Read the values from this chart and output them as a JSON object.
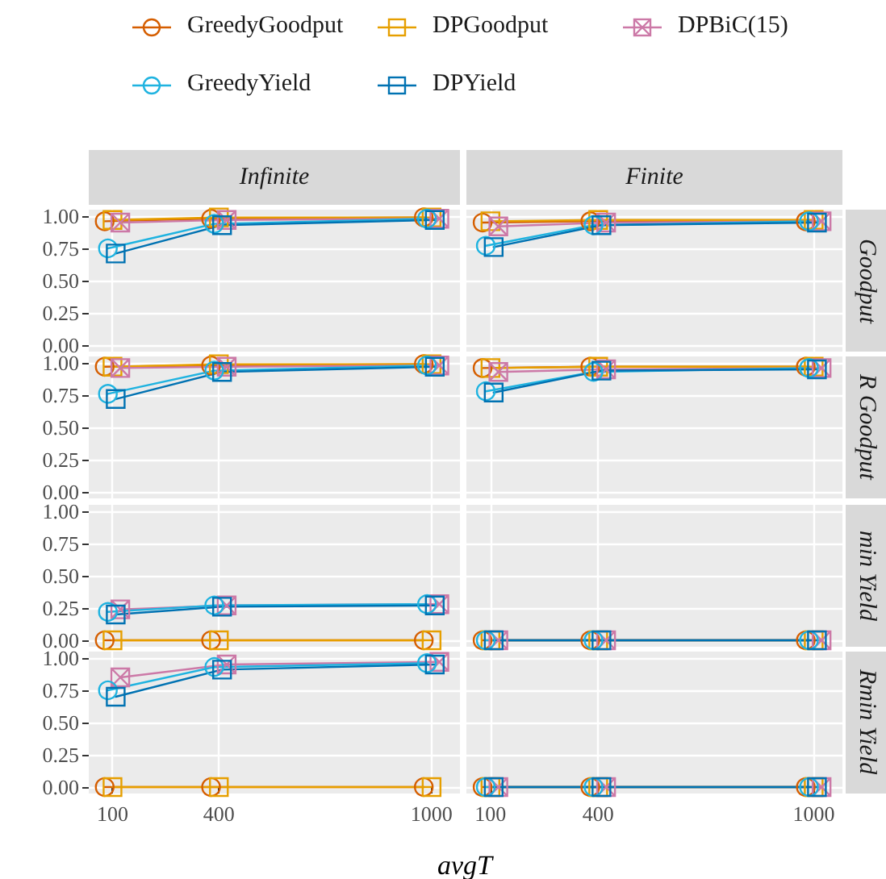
{
  "chart_data": [
    {
      "type": "line",
      "title": "Infinite",
      "xlim": [
        33,
        1080
      ],
      "xticks": [
        100,
        400,
        1000
      ],
      "ylim": [
        -0.05,
        1.05
      ],
      "yticks": [
        {
          "value": 0,
          "label": "0.00"
        },
        {
          "value": 0.25,
          "label": "0.25"
        },
        {
          "value": 0.5,
          "label": "0.50"
        },
        {
          "value": 0.75,
          "label": "0.75"
        },
        {
          "value": 1,
          "label": "1.00"
        }
      ],
      "grid": true,
      "legend": "top",
      "tick_labels": "y",
      "line_style": "solid",
      "series": [
        {
          "name": "GreedyGoodput",
          "color": "#d55e00",
          "marker": "circle",
          "x": [
            78,
            378,
            978
          ],
          "values": [
            0.96,
            0.98,
            0.99
          ]
        },
        {
          "name": "DPGoodput",
          "color": "#e69f00",
          "marker": "square",
          "x": [
            100,
            400,
            1000
          ],
          "values": [
            0.97,
            0.99,
            0.99
          ]
        },
        {
          "name": "DPBiC(15)",
          "color": "#cc79a7",
          "marker": "cross",
          "x": [
            122,
            422,
            1022
          ],
          "values": [
            0.95,
            0.97,
            0.98
          ]
        },
        {
          "name": "GreedyYield",
          "color": "#1fb3e0",
          "marker": "circle",
          "x": [
            87,
            387,
            987
          ],
          "values": [
            0.75,
            0.94,
            0.98
          ]
        },
        {
          "name": "DPYield",
          "color": "#0072b2",
          "marker": "square",
          "x": [
            109,
            409,
            1009
          ],
          "values": [
            0.71,
            0.93,
            0.97
          ]
        }
      ]
    },
    {
      "type": "line",
      "title": "Finite",
      "y2label": "Goodput",
      "xlim": [
        33,
        1080
      ],
      "xticks": [
        100,
        400,
        1000
      ],
      "ylim": [
        -0.05,
        1.05
      ],
      "yticks": [
        0,
        0.25,
        0.5,
        0.75,
        1
      ],
      "grid": true,
      "tick_labels": false,
      "line_style": "solid",
      "series": [
        {
          "color": "#d55e00",
          "marker": "circle",
          "x": [
            78,
            378,
            978
          ],
          "values": [
            0.95,
            0.96,
            0.96
          ]
        },
        {
          "color": "#e69f00",
          "marker": "square",
          "x": [
            100,
            400,
            1000
          ],
          "values": [
            0.96,
            0.97,
            0.97
          ]
        },
        {
          "color": "#cc79a7",
          "marker": "cross",
          "x": [
            122,
            422,
            1022
          ],
          "values": [
            0.92,
            0.95,
            0.96
          ]
        },
        {
          "color": "#1fb3e0",
          "marker": "circle",
          "x": [
            87,
            387,
            987
          ],
          "values": [
            0.77,
            0.93,
            0.96
          ]
        },
        {
          "color": "#0072b2",
          "marker": "square",
          "x": [
            109,
            409,
            1009
          ],
          "values": [
            0.76,
            0.93,
            0.95
          ]
        }
      ]
    },
    {
      "type": "line",
      "xlim": [
        33,
        1080
      ],
      "xticks": [
        100,
        400,
        1000
      ],
      "ylim": [
        -0.05,
        1.05
      ],
      "yticks": [
        {
          "value": 0,
          "label": "0.00"
        },
        {
          "value": 0.25,
          "label": "0.25"
        },
        {
          "value": 0.5,
          "label": "0.50"
        },
        {
          "value": 0.75,
          "label": "0.75"
        },
        {
          "value": 1,
          "label": "1.00"
        }
      ],
      "grid": true,
      "tick_labels": "y",
      "line_style": "solid",
      "series": [
        {
          "color": "#d55e00",
          "marker": "circle",
          "x": [
            78,
            378,
            978
          ],
          "values": [
            0.97,
            0.98,
            0.99
          ]
        },
        {
          "color": "#e69f00",
          "marker": "square",
          "x": [
            100,
            400,
            1000
          ],
          "values": [
            0.97,
            0.99,
            0.99
          ]
        },
        {
          "color": "#cc79a7",
          "marker": "cross",
          "x": [
            122,
            422,
            1022
          ],
          "values": [
            0.96,
            0.97,
            0.98
          ]
        },
        {
          "color": "#1fb3e0",
          "marker": "circle",
          "x": [
            87,
            387,
            987
          ],
          "values": [
            0.76,
            0.94,
            0.98
          ]
        },
        {
          "color": "#0072b2",
          "marker": "square",
          "x": [
            109,
            409,
            1009
          ],
          "values": [
            0.72,
            0.93,
            0.97
          ]
        }
      ]
    },
    {
      "type": "line",
      "y2label": "R Goodput",
      "xlim": [
        33,
        1080
      ],
      "xticks": [
        100,
        400,
        1000
      ],
      "ylim": [
        -0.05,
        1.05
      ],
      "yticks": [
        0,
        0.25,
        0.5,
        0.75,
        1
      ],
      "grid": true,
      "tick_labels": false,
      "line_style": "solid",
      "series": [
        {
          "color": "#d55e00",
          "marker": "circle",
          "x": [
            78,
            378,
            978
          ],
          "values": [
            0.96,
            0.97,
            0.97
          ]
        },
        {
          "color": "#e69f00",
          "marker": "square",
          "x": [
            100,
            400,
            1000
          ],
          "values": [
            0.96,
            0.97,
            0.97
          ]
        },
        {
          "color": "#cc79a7",
          "marker": "cross",
          "x": [
            122,
            422,
            1022
          ],
          "values": [
            0.93,
            0.95,
            0.96
          ]
        },
        {
          "color": "#1fb3e0",
          "marker": "circle",
          "x": [
            87,
            387,
            987
          ],
          "values": [
            0.78,
            0.93,
            0.96
          ]
        },
        {
          "color": "#0072b2",
          "marker": "square",
          "x": [
            109,
            409,
            1009
          ],
          "values": [
            0.77,
            0.94,
            0.95
          ]
        }
      ]
    },
    {
      "type": "line",
      "xlim": [
        33,
        1080
      ],
      "xticks": [
        100,
        400,
        1000
      ],
      "ylim": [
        -0.05,
        1.05
      ],
      "yticks": [
        {
          "value": 0,
          "label": "0.00"
        },
        {
          "value": 0.25,
          "label": "0.25"
        },
        {
          "value": 0.5,
          "label": "0.50"
        },
        {
          "value": 0.75,
          "label": "0.75"
        },
        {
          "value": 1,
          "label": "1.00"
        }
      ],
      "grid": true,
      "tick_labels": "y",
      "line_style": "solid",
      "series": [
        {
          "color": "#d55e00",
          "marker": "circle",
          "x": [
            78,
            378,
            978
          ],
          "values": [
            0,
            0,
            0
          ]
        },
        {
          "color": "#e69f00",
          "marker": "square",
          "x": [
            100,
            400,
            1000
          ],
          "values": [
            0,
            0,
            0
          ]
        },
        {
          "color": "#cc79a7",
          "marker": "cross",
          "x": [
            122,
            422,
            1022
          ],
          "values": [
            0.24,
            0.27,
            0.28
          ]
        },
        {
          "color": "#1fb3e0",
          "marker": "circle",
          "x": [
            87,
            387,
            987
          ],
          "values": [
            0.22,
            0.27,
            0.28
          ]
        },
        {
          "color": "#0072b2",
          "marker": "square",
          "x": [
            109,
            409,
            1009
          ],
          "values": [
            0.2,
            0.26,
            0.27
          ]
        }
      ]
    },
    {
      "type": "line",
      "y2label": "min Yield",
      "xlim": [
        33,
        1080
      ],
      "xticks": [
        100,
        400,
        1000
      ],
      "ylim": [
        -0.05,
        1.05
      ],
      "yticks": [
        0,
        0.25,
        0.5,
        0.75,
        1
      ],
      "grid": true,
      "tick_labels": false,
      "line_style": "solid",
      "series": [
        {
          "color": "#d55e00",
          "marker": "circle",
          "x": [
            78,
            378,
            978
          ],
          "values": [
            0,
            0,
            0
          ]
        },
        {
          "color": "#e69f00",
          "marker": "square",
          "x": [
            100,
            400,
            1000
          ],
          "values": [
            0,
            0,
            0
          ]
        },
        {
          "color": "#cc79a7",
          "marker": "cross",
          "x": [
            122,
            422,
            1022
          ],
          "values": [
            0,
            0,
            0
          ]
        },
        {
          "color": "#1fb3e0",
          "marker": "circle",
          "x": [
            87,
            387,
            987
          ],
          "values": [
            0,
            0,
            0
          ]
        },
        {
          "color": "#0072b2",
          "marker": "square",
          "x": [
            109,
            409,
            1009
          ],
          "values": [
            0,
            0,
            0
          ]
        }
      ]
    },
    {
      "type": "line",
      "xlabel": "avgT",
      "xlim": [
        33,
        1080
      ],
      "xticks": [
        100,
        400,
        1000
      ],
      "ylim": [
        -0.05,
        1.05
      ],
      "yticks": [
        {
          "value": 0,
          "label": "0.00"
        },
        {
          "value": 0.25,
          "label": "0.25"
        },
        {
          "value": 0.5,
          "label": "0.50"
        },
        {
          "value": 0.75,
          "label": "0.75"
        },
        {
          "value": 1,
          "label": "1.00"
        }
      ],
      "grid": true,
      "line_style": "solid",
      "series": [
        {
          "color": "#d55e00",
          "marker": "circle",
          "x": [
            78,
            378,
            978
          ],
          "values": [
            0,
            0,
            0
          ]
        },
        {
          "color": "#e69f00",
          "marker": "square",
          "x": [
            100,
            400,
            1000
          ],
          "values": [
            0,
            0,
            0
          ]
        },
        {
          "color": "#cc79a7",
          "marker": "cross",
          "x": [
            122,
            422,
            1022
          ],
          "values": [
            0.85,
            0.95,
            0.97
          ]
        },
        {
          "color": "#1fb3e0",
          "marker": "circle",
          "x": [
            87,
            387,
            987
          ],
          "values": [
            0.75,
            0.93,
            0.96
          ]
        },
        {
          "color": "#0072b2",
          "marker": "square",
          "x": [
            109,
            409,
            1009
          ],
          "values": [
            0.7,
            0.91,
            0.95
          ]
        }
      ]
    },
    {
      "type": "line",
      "y2label": "Rmin Yield",
      "xlim": [
        33,
        1080
      ],
      "xticks": [
        100,
        400,
        1000
      ],
      "ylim": [
        -0.05,
        1.05
      ],
      "yticks": [
        0,
        0.25,
        0.5,
        0.75,
        1
      ],
      "grid": true,
      "tick_labels": "x",
      "line_style": "solid",
      "series": [
        {
          "color": "#d55e00",
          "marker": "circle",
          "x": [
            78,
            378,
            978
          ],
          "values": [
            0,
            0,
            0
          ]
        },
        {
          "color": "#e69f00",
          "marker": "square",
          "x": [
            100,
            400,
            1000
          ],
          "values": [
            0,
            0,
            0
          ]
        },
        {
          "color": "#cc79a7",
          "marker": "cross",
          "x": [
            122,
            422,
            1022
          ],
          "values": [
            0,
            0,
            0
          ]
        },
        {
          "color": "#1fb3e0",
          "marker": "circle",
          "x": [
            87,
            387,
            987
          ],
          "values": [
            0,
            0,
            0
          ]
        },
        {
          "color": "#0072b2",
          "marker": "square",
          "x": [
            109,
            409,
            1009
          ],
          "values": [
            0,
            0,
            0
          ]
        }
      ]
    }
  ]
}
